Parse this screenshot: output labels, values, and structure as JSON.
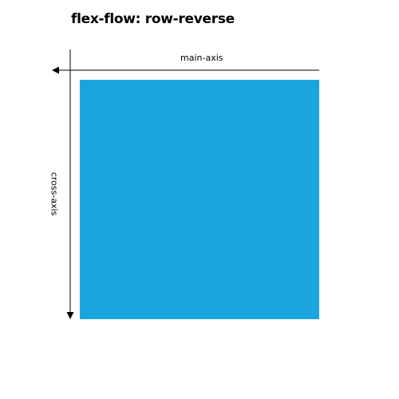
{
  "diagram": {
    "title": "flex-flow: row-reverse",
    "main_axis": {
      "label": "main-axis",
      "direction": "right-to-left"
    },
    "cross_axis": {
      "label": "cross-axis",
      "direction": "top-to-bottom"
    },
    "flex_item": {
      "color": "#1ba5df"
    },
    "colors": {
      "axis": "#000000",
      "text": "#000000",
      "background": "#ffffff"
    }
  }
}
